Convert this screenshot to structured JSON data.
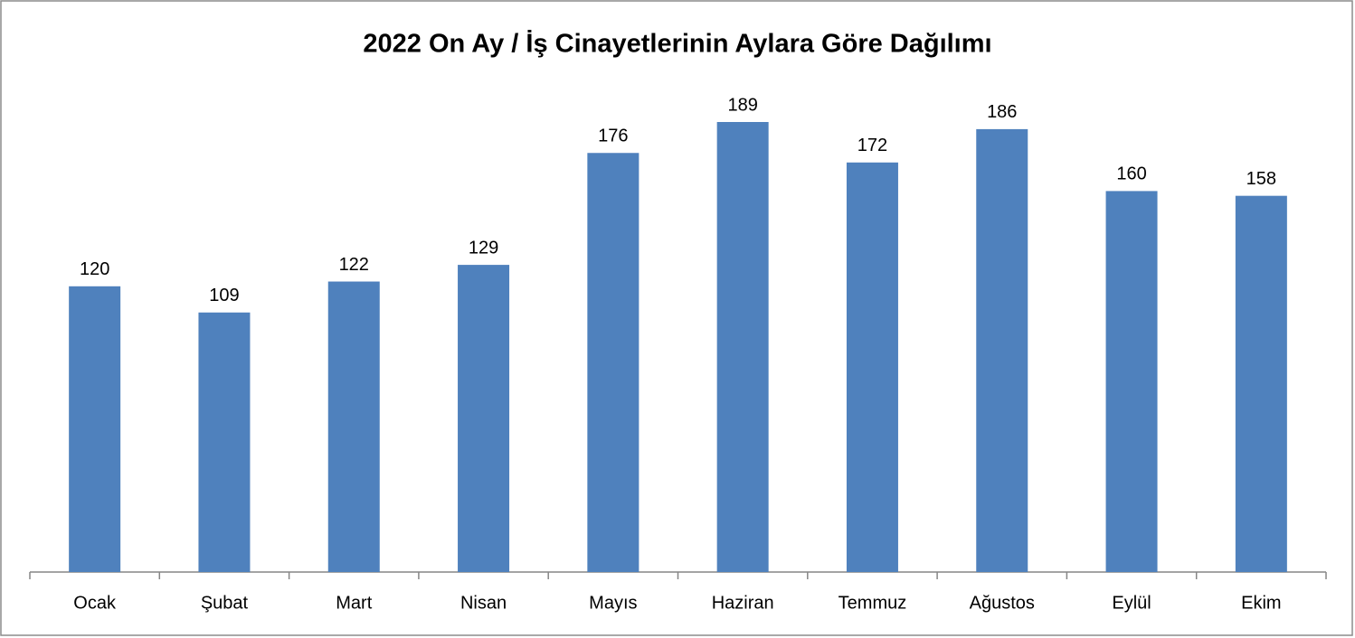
{
  "chart_data": {
    "type": "bar",
    "title": "2022 On Ay / İş Cinayetlerinin Aylara Göre Dağılımı",
    "categories": [
      "Ocak",
      "Şubat",
      "Mart",
      "Nisan",
      "Mayıs",
      "Haziran",
      "Temmuz",
      "Ağustos",
      "Eylül",
      "Ekim"
    ],
    "values": [
      120,
      109,
      122,
      129,
      176,
      189,
      172,
      186,
      160,
      158
    ],
    "color": "#4f81bd"
  }
}
